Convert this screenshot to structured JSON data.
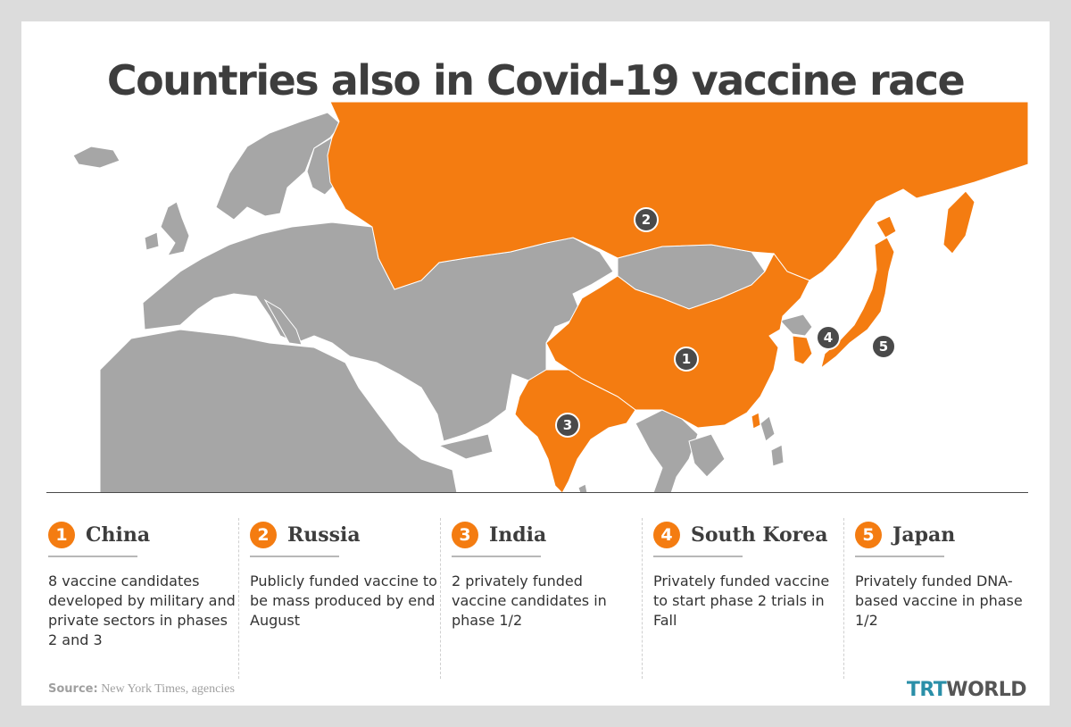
{
  "title": "Countries also in Covid-19 vaccine race",
  "colors": {
    "highlight": "#f47c11",
    "land": "#a6a6a6",
    "borders": "#ffffff",
    "marker": "#4a4a4a",
    "title": "#3d3d3d"
  },
  "map_markers": [
    {
      "number": "1",
      "country": "China"
    },
    {
      "number": "2",
      "country": "Russia"
    },
    {
      "number": "3",
      "country": "India"
    },
    {
      "number": "4",
      "country": "South Korea"
    },
    {
      "number": "5",
      "country": "Japan"
    }
  ],
  "highlighted_countries": [
    "China",
    "Russia",
    "India",
    "South Korea",
    "Japan"
  ],
  "panels": [
    {
      "number": "1",
      "name": "China",
      "description": "8 vaccine candidates developed by military and private sectors in phases 2 and 3"
    },
    {
      "number": "2",
      "name": "Russia",
      "description": "Publicly funded vaccine to be mass produced by end August"
    },
    {
      "number": "3",
      "name": "India",
      "description": "2 privately funded vaccine candidates in phase 1/2"
    },
    {
      "number": "4",
      "name": "South Korea",
      "description": "Privately funded vaccine to start phase 2 trials in Fall"
    },
    {
      "number": "5",
      "name": "Japan",
      "description": "Privately funded DNA-based vaccine in phase 1/2"
    }
  ],
  "source": {
    "label": "Source:",
    "text": " New York Times, agencies"
  },
  "logo": {
    "part1": "TRT",
    "part2": "WORLD"
  }
}
